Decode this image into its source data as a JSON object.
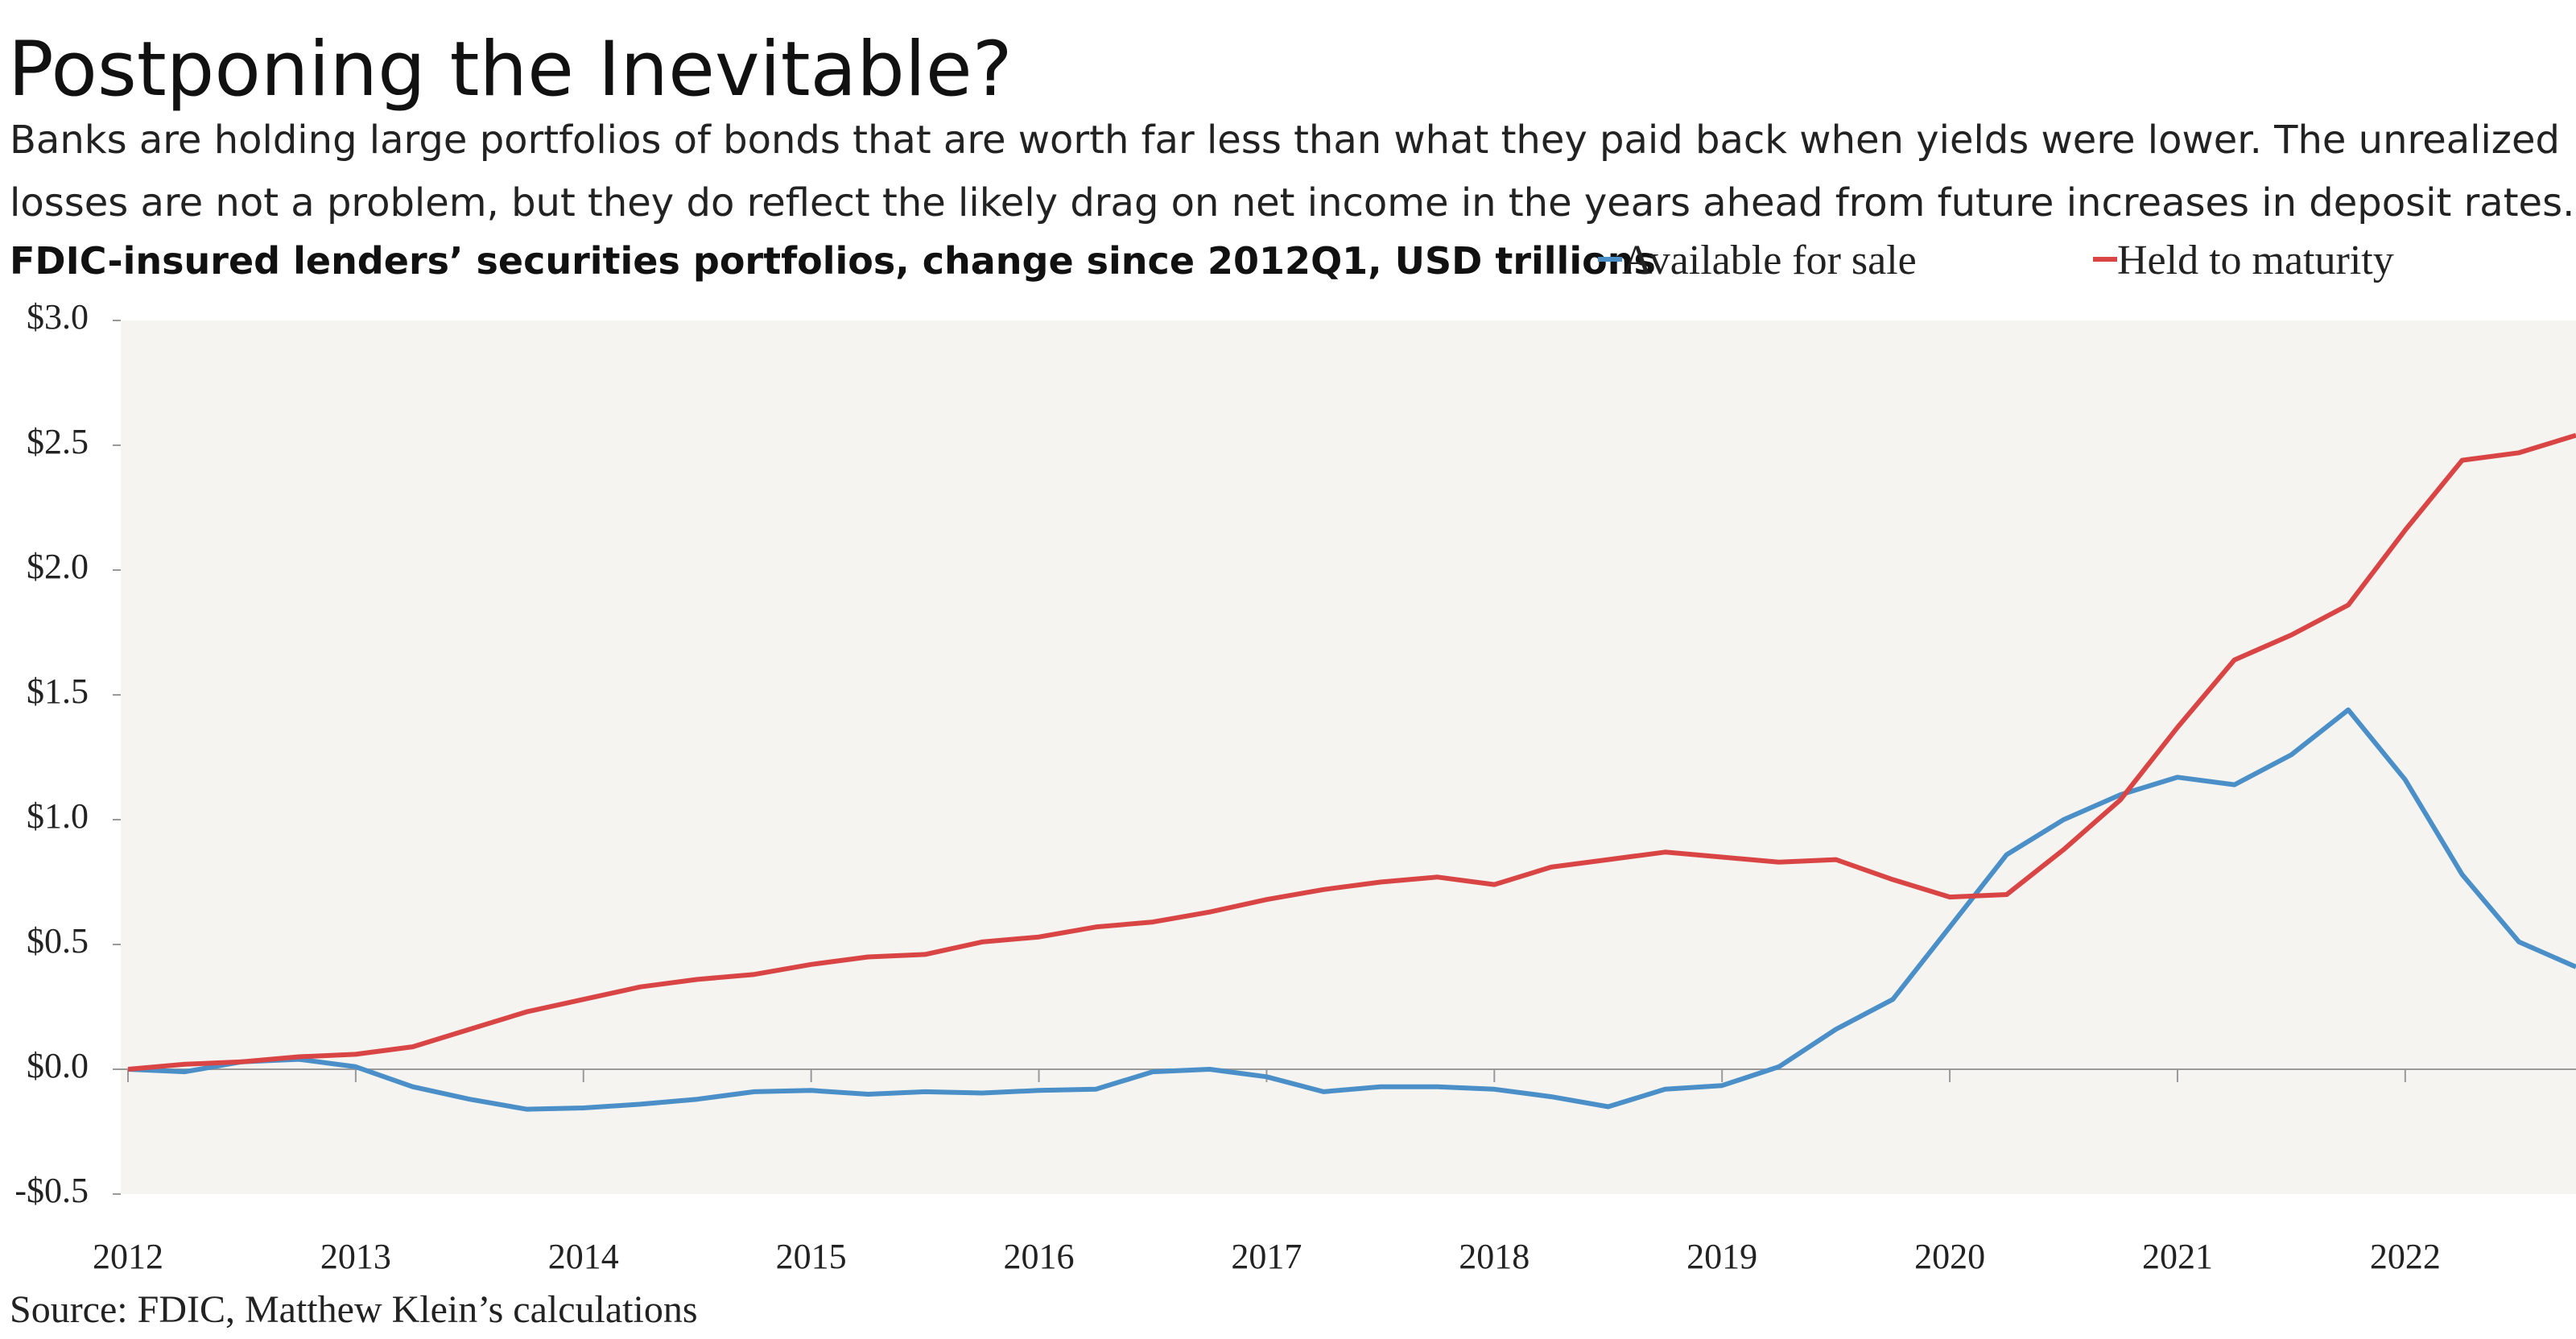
{
  "chart_data": {
    "type": "line",
    "title": "Postponing the Inevitable?",
    "subtitle": [
      "Banks are holding large portfolios of bonds that are worth far less than what they paid back when yields were lower. The unrealized",
      "losses are not a problem, but they do reflect the likely drag on net income in the years ahead from future increases in deposit rates."
    ],
    "y_label": "FDIC-insured lenders’ securities portfolios, change since 2012Q1, USD trillions",
    "source": "Source: FDIC, Matthew Klein’s calculations",
    "x": [
      2012,
      2012.25,
      2012.5,
      2012.75,
      2013,
      2013.25,
      2013.5,
      2013.75,
      2014,
      2014.25,
      2014.5,
      2014.75,
      2015,
      2015.25,
      2015.5,
      2015.75,
      2016,
      2016.25,
      2016.5,
      2016.75,
      2017,
      2017.25,
      2017.5,
      2017.75,
      2018,
      2018.25,
      2018.5,
      2018.75,
      2019,
      2019.25,
      2019.5,
      2019.75,
      2020,
      2020.25,
      2020.5,
      2020.75,
      2021,
      2021.25,
      2021.5,
      2021.75,
      2022,
      2022.25,
      2022.5,
      2022.75
    ],
    "series": [
      {
        "name": "Available for sale",
        "color": "#4a8fc7",
        "values": [
          0,
          -0.01,
          0.03,
          0.04,
          0.01,
          -0.07,
          -0.12,
          -0.16,
          -0.155,
          -0.14,
          -0.12,
          -0.09,
          -0.085,
          -0.1,
          -0.09,
          -0.095,
          -0.085,
          -0.08,
          -0.01,
          0,
          -0.03,
          -0.09,
          -0.07,
          -0.07,
          -0.08,
          -0.11,
          -0.15,
          -0.08,
          -0.065,
          0.01,
          0.16,
          0.28,
          0.57,
          0.86,
          1.0,
          1.1,
          1.17,
          1.14,
          1.26,
          1.44,
          1.16,
          0.78,
          0.51,
          0.41
        ]
      },
      {
        "name": "Held to maturity",
        "color": "#d94545",
        "values": [
          0,
          0.02,
          0.03,
          0.05,
          0.06,
          0.09,
          0.16,
          0.23,
          0.28,
          0.33,
          0.36,
          0.38,
          0.42,
          0.45,
          0.46,
          0.51,
          0.53,
          0.57,
          0.59,
          0.63,
          0.68,
          0.72,
          0.75,
          0.77,
          0.74,
          0.81,
          0.84,
          0.87,
          0.85,
          0.83,
          0.84,
          0.76,
          0.69,
          0.7,
          0.88,
          1.08,
          1.37,
          1.64,
          1.74,
          1.86,
          2.16,
          2.44,
          2.47,
          2.54
        ]
      }
    ],
    "xlim": [
      2012,
      2022.75
    ],
    "xticks": [
      2012,
      2013,
      2014,
      2015,
      2016,
      2017,
      2018,
      2019,
      2020,
      2021,
      2022
    ],
    "ylim": [
      -0.5,
      3.0
    ],
    "yticks": [
      {
        "value": -0.5,
        "label": "-$0.5"
      },
      {
        "value": 0,
        "label": "$0.0"
      },
      {
        "value": 0.5,
        "label": "$0.5"
      },
      {
        "value": 1.0,
        "label": "$1.0"
      },
      {
        "value": 1.5,
        "label": "$1.5"
      },
      {
        "value": 2.0,
        "label": "$2.0"
      },
      {
        "value": 2.5,
        "label": "$2.5"
      },
      {
        "value": 3.0,
        "label": "$3.0"
      }
    ]
  }
}
